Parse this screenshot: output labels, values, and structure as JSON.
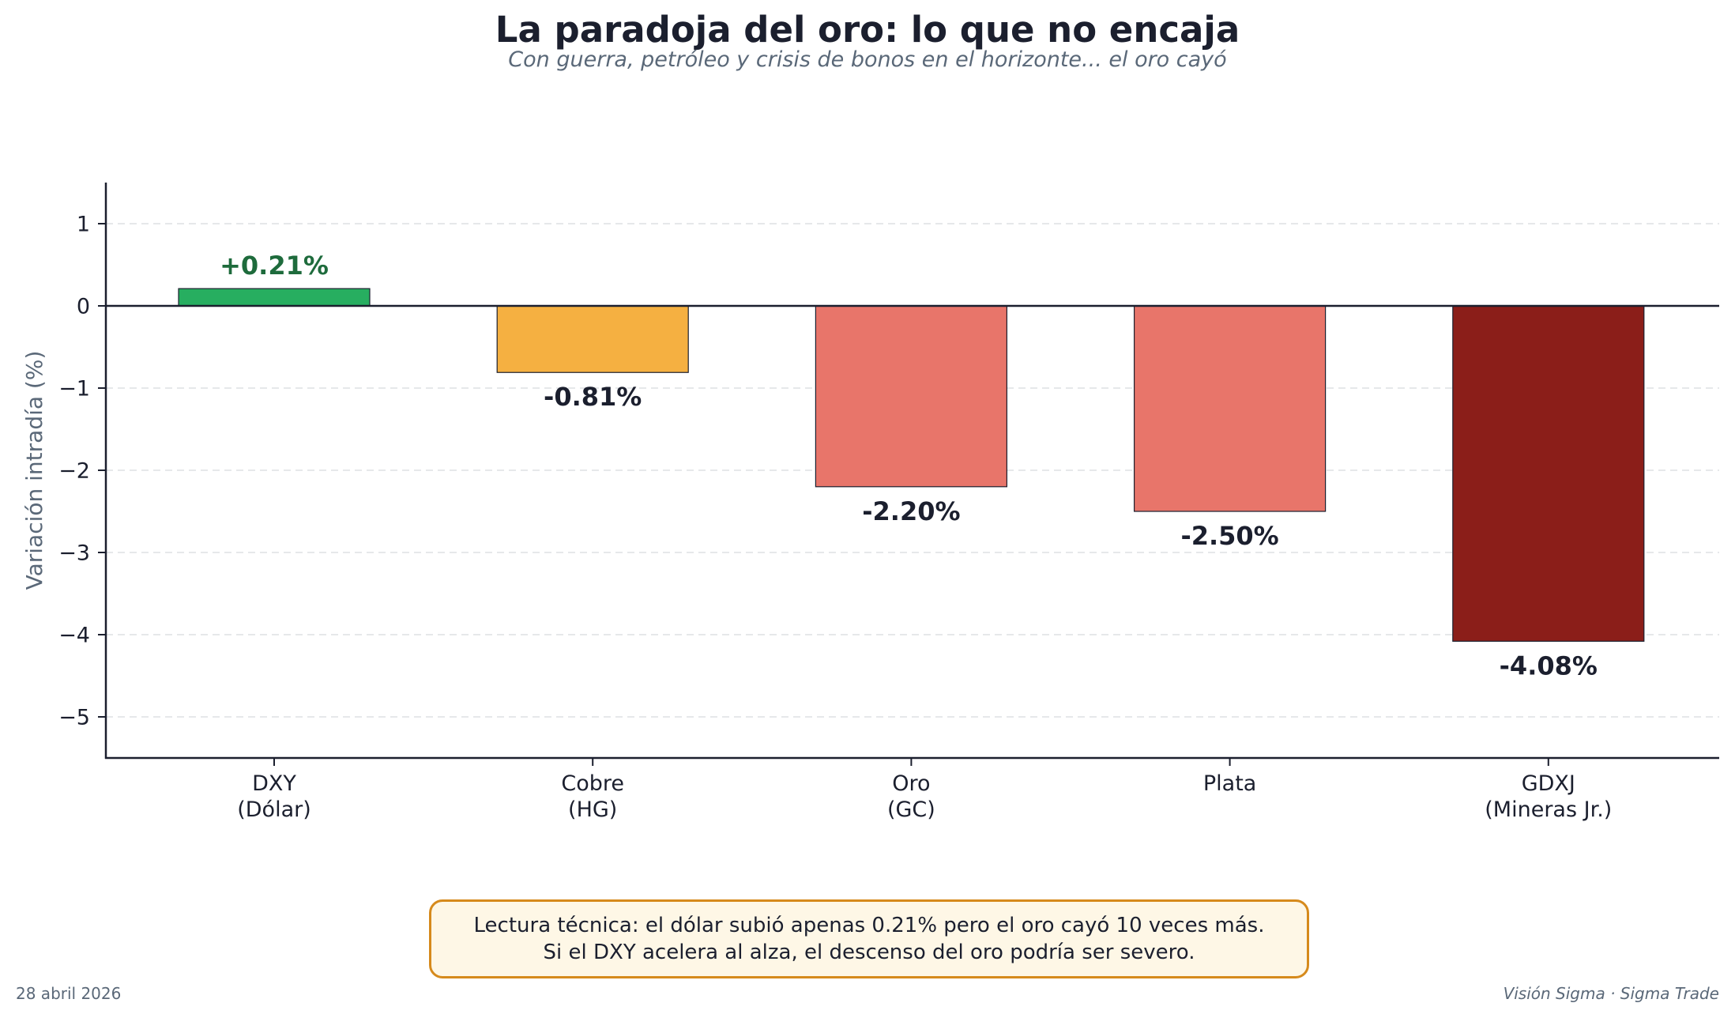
{
  "chart_data": {
    "type": "bar",
    "title": "La paradoja del oro: lo que no encaja",
    "subtitle": "Con guerra, petróleo y crisis de bonos en el horizonte... el oro cayó",
    "xlabel": "",
    "ylabel": "Variación intradía (%)",
    "ylim": [
      -5.5,
      1.5
    ],
    "yticks": [
      1,
      0,
      -1,
      -2,
      -3,
      -4,
      -5
    ],
    "ytick_labels": [
      "1",
      "0",
      "−1",
      "−2",
      "−3",
      "−4",
      "−5"
    ],
    "grid": "y-dashed",
    "categories": [
      [
        "DXY",
        "(Dólar)"
      ],
      [
        "Cobre",
        "(HG)"
      ],
      [
        "Oro",
        "(GC)"
      ],
      [
        "Plata"
      ],
      [
        "GDXJ",
        "(Mineras Jr.)"
      ]
    ],
    "values": [
      0.21,
      -0.81,
      -2.2,
      -2.5,
      -4.08
    ],
    "value_labels": [
      "+0.21%",
      "-0.81%",
      "-2.20%",
      "-2.50%",
      "-4.08%"
    ],
    "bar_colors": [
      "#27AE60",
      "#F5B041",
      "#E8756A",
      "#E8756A",
      "#8B1E19"
    ],
    "label_colors": [
      "#1E6B3C",
      "#1B1F2E",
      "#1B1F2E",
      "#1B1F2E",
      "#1B1F2E"
    ]
  },
  "annotation": {
    "line1": "Lectura técnica: el dólar subió apenas 0.21% pero el oro cayó 10 veces más.",
    "line2": "Si el DXY acelera al alza, el descenso del oro podría ser severo."
  },
  "footer": {
    "date": "28 abril 2026",
    "credit": "Visión Sigma · Sigma Trade"
  }
}
